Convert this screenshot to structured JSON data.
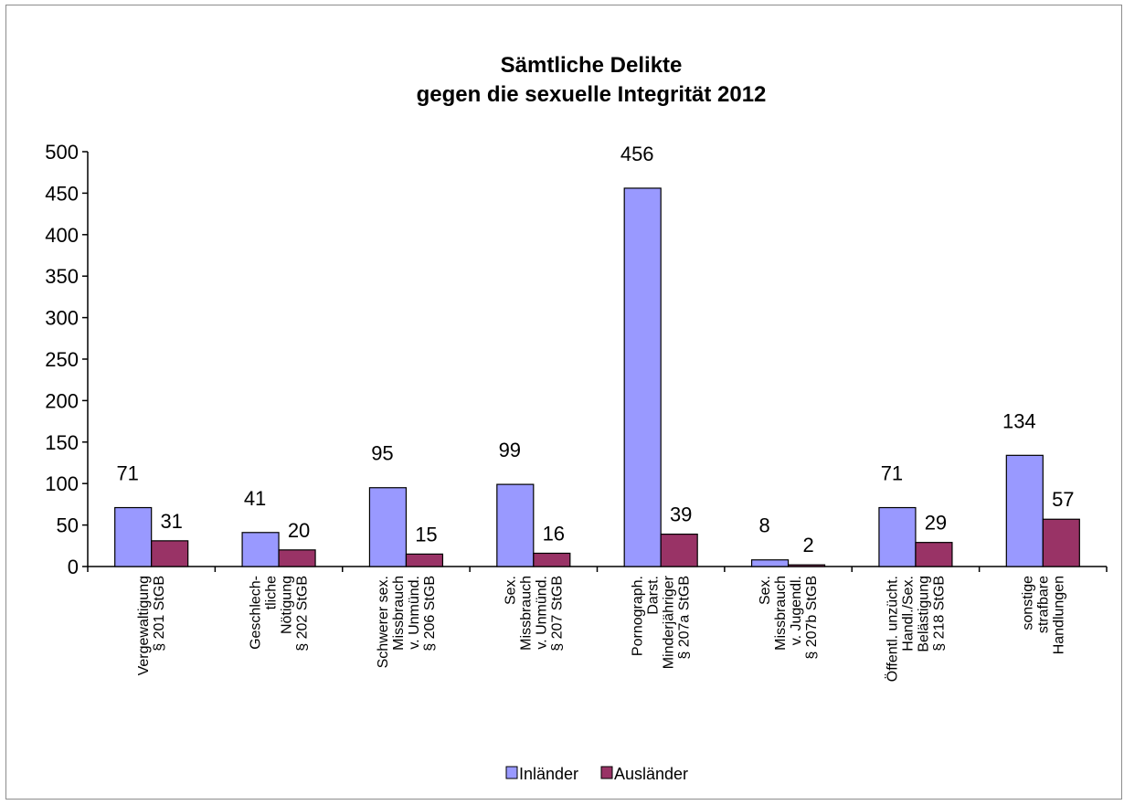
{
  "chart_data": {
    "type": "bar",
    "title": [
      "Sämtliche Delikte",
      "gegen die sexuelle Integrität 2012"
    ],
    "categories": [
      [
        "Vergewaltigung",
        "§ 201 StGB"
      ],
      [
        "Geschlech-",
        "tliche",
        "Nötigung",
        "§ 202 StGB"
      ],
      [
        "Schwerer sex.",
        "Missbrauch",
        "v. Unmünd.",
        "§ 206 StGB"
      ],
      [
        "Sex.",
        "Missbrauch",
        "v. Unmünd.",
        "§ 207 StGB"
      ],
      [
        "Pornograph.",
        "Darst.",
        "Minderjähriger",
        "§ 207a StGB"
      ],
      [
        "Sex.",
        "Missbrauch",
        "v. Jugendl.",
        "§ 207b StGB"
      ],
      [
        "Öffentl. unzücht.",
        "Handl./Sex.",
        "Belästigung",
        "§ 218 StGB"
      ],
      [
        "sonstige",
        "strafbare",
        "Handlungen"
      ]
    ],
    "series": [
      {
        "name": "Inländer",
        "values": [
          71,
          41,
          95,
          99,
          456,
          8,
          71,
          134
        ],
        "color": "#9999ff"
      },
      {
        "name": "Ausländer",
        "values": [
          31,
          20,
          15,
          16,
          39,
          2,
          29,
          57
        ],
        "color": "#993366"
      }
    ],
    "ylim": [
      0,
      500
    ],
    "yticks": [
      0,
      50,
      100,
      150,
      200,
      250,
      300,
      350,
      400,
      450,
      500
    ],
    "grid": false,
    "legend": "bottom-center"
  }
}
